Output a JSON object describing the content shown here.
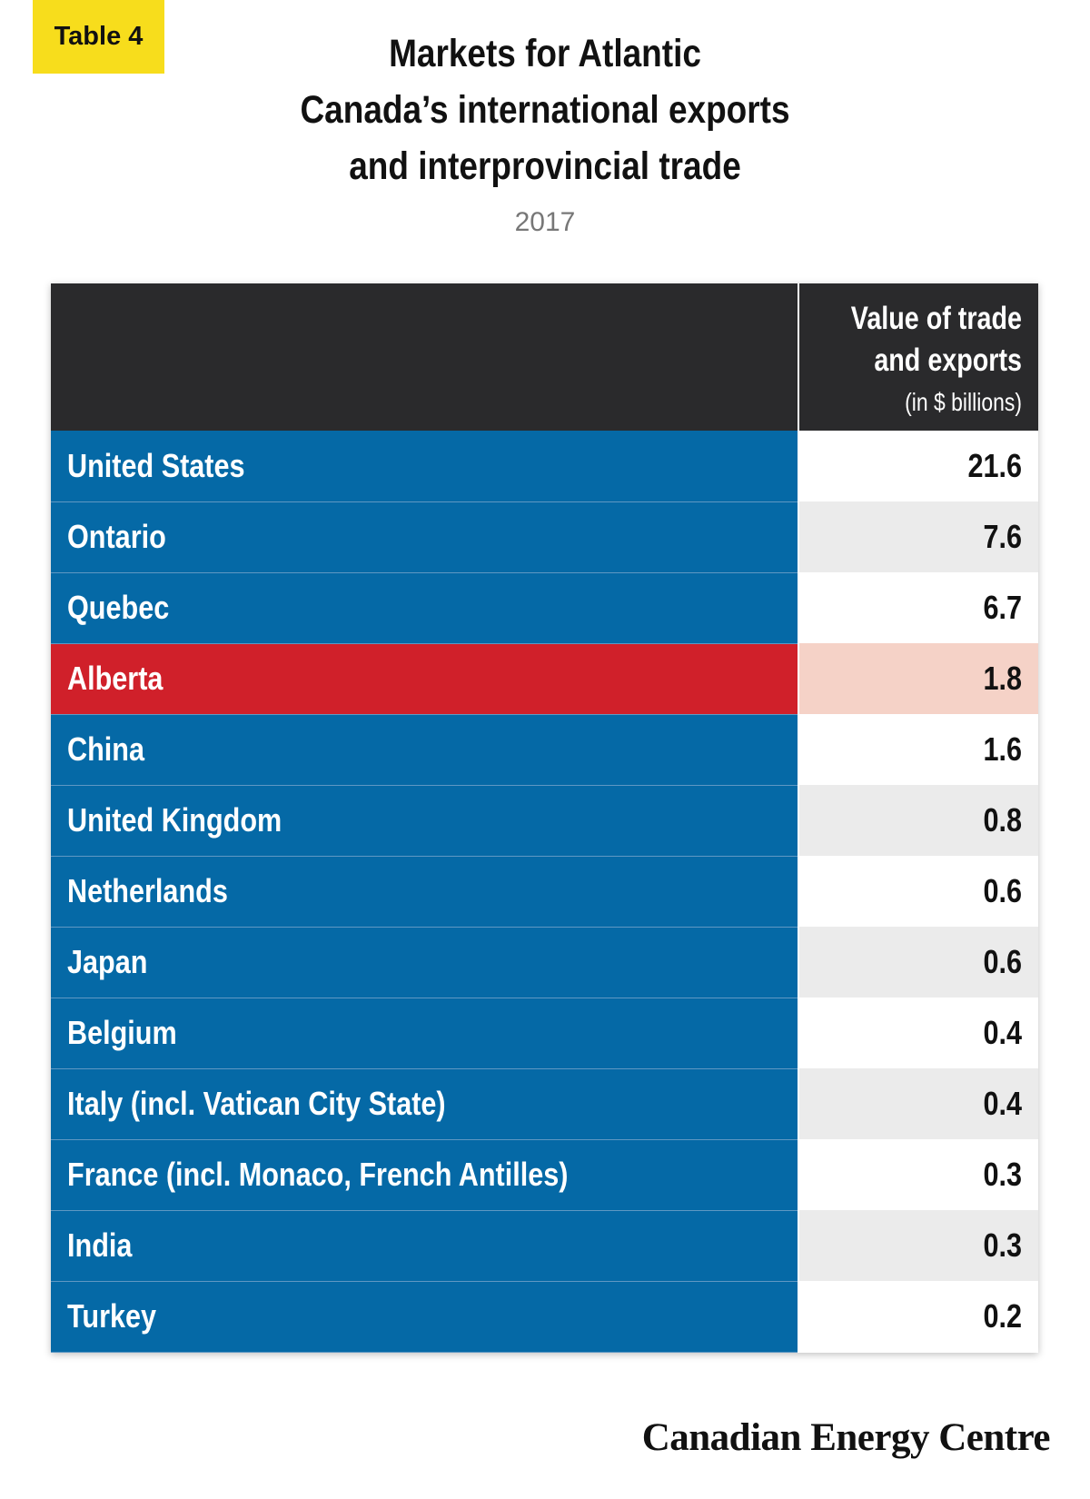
{
  "badge": "Table 4",
  "title_lines": [
    "Markets for Atlantic",
    "Canada’s international exports",
    "and interprovincial trade"
  ],
  "subtitle": "2017",
  "chart_data": {
    "type": "table",
    "columns": [
      "",
      "Value of trade and exports (in $ billions)"
    ],
    "header_lines": [
      "Value of trade",
      "and exports"
    ],
    "header_unit": "(in $ billions)",
    "rows": [
      {
        "label": "United States",
        "value": "21.6"
      },
      {
        "label": "Ontario",
        "value": "7.6"
      },
      {
        "label": "Quebec",
        "value": "6.7"
      },
      {
        "label": "Alberta",
        "value": "1.8",
        "highlight": true
      },
      {
        "label": "China",
        "value": "1.6"
      },
      {
        "label": "United Kingdom",
        "value": "0.8"
      },
      {
        "label": "Netherlands",
        "value": "0.6"
      },
      {
        "label": "Japan",
        "value": "0.6"
      },
      {
        "label": "Belgium",
        "value": "0.4"
      },
      {
        "label": "Italy (incl. Vatican City State)",
        "value": "0.4"
      },
      {
        "label": "France (incl. Monaco, French Antilles)",
        "value": "0.3"
      },
      {
        "label": "India",
        "value": "0.3"
      },
      {
        "label": "Turkey",
        "value": "0.2"
      }
    ],
    "colors": {
      "label_bg": "#0569a6",
      "highlight_label_bg": "#d0202a",
      "highlight_value_bg": "#f5d2c7",
      "header_bg": "#2a2a2c",
      "badge_bg": "#f7dd1c"
    }
  },
  "footer": "Canadian Energy Centre"
}
